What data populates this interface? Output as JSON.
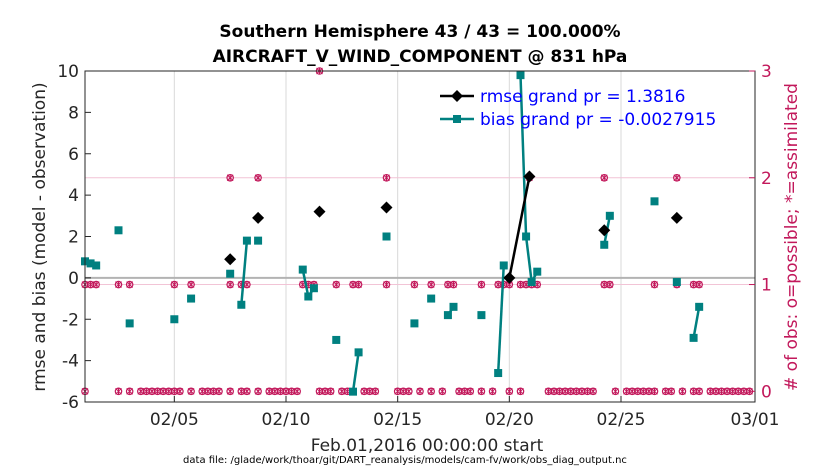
{
  "chart_data": {
    "type": "line",
    "title": "Southern Hemisphere 43 / 43 = 100.000%",
    "subtitle": "AIRCRAFT_V_WIND_COMPONENT @ 831 hPa",
    "xlabel": "Feb.01,2016 00:00:00 start",
    "ylabel": "rmse and bias (model - observation)",
    "ylabel_right": "# of obs: o=possible; *=assimilated",
    "footer": "data file: /glade/work/thoar/git/DART_reanalysis/models/cam-fv/work/obs_diag_output.nc",
    "xlim": [
      1,
      31
    ],
    "ylim": [
      -6,
      10
    ],
    "ylim_right": [
      -0.1,
      3
    ],
    "x_ticks": [
      5,
      10,
      15,
      20,
      25,
      31
    ],
    "x_tick_labels": [
      "02/05",
      "02/10",
      "02/15",
      "02/20",
      "02/25",
      "03/01"
    ],
    "y_ticks": [
      -6,
      -4,
      -2,
      0,
      2,
      4,
      6,
      8,
      10
    ],
    "y_tick_labels": [
      "-6",
      "-4",
      "-2",
      "0",
      "2",
      "4",
      "6",
      "8",
      "10"
    ],
    "y_right_ticks": [
      0,
      1,
      2,
      3
    ],
    "y_right_tick_labels": [
      "0",
      "1",
      "2",
      "3"
    ],
    "colors": {
      "rmse": "#000000",
      "bias": "#008080",
      "obs": "#c2185b",
      "zero_line": "#b3b3b3",
      "grid": "#d9d9d9"
    },
    "legend": [
      {
        "label": "rmse grand pr = 1.3816"
      },
      {
        "label": "bias grand pr = -0.0027915"
      }
    ],
    "series": [
      {
        "name": "rmse",
        "points": [
          [
            7.5,
            0.9
          ],
          [
            8.75,
            2.9
          ],
          [
            11.5,
            3.2
          ],
          [
            14.5,
            3.4
          ],
          [
            20.0,
            0.0
          ],
          [
            20.9,
            4.9
          ],
          [
            24.25,
            2.3
          ],
          [
            27.5,
            2.9
          ]
        ],
        "segments": [
          [
            [
              20.0,
              0.0
            ],
            [
              20.9,
              4.9
            ]
          ]
        ]
      },
      {
        "name": "bias",
        "points": [
          [
            1.0,
            0.8
          ],
          [
            1.25,
            0.7
          ],
          [
            1.5,
            0.6
          ],
          [
            2.5,
            2.3
          ],
          [
            3.0,
            -2.2
          ],
          [
            5.0,
            -2.0
          ],
          [
            5.75,
            -1.0
          ],
          [
            7.5,
            0.2
          ],
          [
            8.0,
            -1.3
          ],
          [
            8.25,
            1.8
          ],
          [
            8.75,
            1.8
          ],
          [
            10.75,
            0.4
          ],
          [
            11.0,
            -0.9
          ],
          [
            11.25,
            -0.5
          ],
          [
            12.25,
            -3.0
          ],
          [
            13.0,
            -5.5
          ],
          [
            13.25,
            -3.6
          ],
          [
            14.5,
            2.0
          ],
          [
            15.75,
            -2.2
          ],
          [
            16.5,
            -1.0
          ],
          [
            17.25,
            -1.8
          ],
          [
            17.5,
            -1.4
          ],
          [
            18.75,
            -1.8
          ],
          [
            19.5,
            -4.6
          ],
          [
            19.75,
            0.6
          ],
          [
            20.5,
            9.8
          ],
          [
            20.75,
            2.0
          ],
          [
            21.0,
            -0.2
          ],
          [
            21.25,
            0.3
          ],
          [
            24.25,
            1.6
          ],
          [
            24.5,
            3.0
          ],
          [
            26.5,
            3.7
          ],
          [
            27.5,
            -0.2
          ],
          [
            28.25,
            -2.9
          ],
          [
            28.5,
            -1.4
          ]
        ],
        "segments": [
          [
            [
              1.0,
              0.8
            ],
            [
              1.25,
              0.7
            ],
            [
              1.5,
              0.6
            ]
          ],
          [
            [
              8.0,
              -1.3
            ],
            [
              8.25,
              1.8
            ]
          ],
          [
            [
              10.75,
              0.4
            ],
            [
              11.0,
              -0.9
            ],
            [
              11.25,
              -0.5
            ]
          ],
          [
            [
              13.0,
              -5.5
            ],
            [
              13.25,
              -3.6
            ]
          ],
          [
            [
              17.25,
              -1.8
            ],
            [
              17.5,
              -1.4
            ]
          ],
          [
            [
              19.5,
              -4.6
            ],
            [
              19.75,
              0.6
            ]
          ],
          [
            [
              20.5,
              9.8
            ],
            [
              20.75,
              2.0
            ],
            [
              21.0,
              -0.2
            ],
            [
              21.25,
              0.3
            ]
          ],
          [
            [
              24.25,
              1.6
            ],
            [
              24.5,
              3.0
            ]
          ],
          [
            [
              28.25,
              -2.9
            ],
            [
              28.5,
              -1.4
            ]
          ]
        ]
      },
      {
        "name": "obs_count_possible_and_assimilated",
        "axis": "right",
        "points": [
          [
            1.0,
            0
          ],
          [
            1.0,
            1
          ],
          [
            1.25,
            1
          ],
          [
            1.5,
            1
          ],
          [
            2.5,
            1
          ],
          [
            2.5,
            0
          ],
          [
            3.0,
            1
          ],
          [
            3.0,
            0
          ],
          [
            3.5,
            0
          ],
          [
            3.75,
            0
          ],
          [
            4.0,
            0
          ],
          [
            4.25,
            0
          ],
          [
            4.5,
            0
          ],
          [
            4.75,
            0
          ],
          [
            5.0,
            1
          ],
          [
            5.0,
            0
          ],
          [
            5.25,
            0
          ],
          [
            5.75,
            1
          ],
          [
            5.75,
            0
          ],
          [
            6.25,
            0
          ],
          [
            6.5,
            0
          ],
          [
            6.75,
            0
          ],
          [
            7.0,
            0
          ],
          [
            7.5,
            2
          ],
          [
            7.5,
            1
          ],
          [
            7.5,
            0
          ],
          [
            8.0,
            1
          ],
          [
            8.25,
            1
          ],
          [
            8.0,
            0
          ],
          [
            8.25,
            0
          ],
          [
            8.75,
            2
          ],
          [
            8.75,
            0
          ],
          [
            9.25,
            0
          ],
          [
            9.5,
            0
          ],
          [
            9.75,
            0
          ],
          [
            10.0,
            0
          ],
          [
            10.25,
            0
          ],
          [
            10.5,
            0
          ],
          [
            10.75,
            1
          ],
          [
            11.0,
            1
          ],
          [
            11.25,
            1
          ],
          [
            11.5,
            3
          ],
          [
            11.5,
            0
          ],
          [
            11.75,
            0
          ],
          [
            12.0,
            0
          ],
          [
            12.25,
            1
          ],
          [
            12.5,
            0
          ],
          [
            12.75,
            0
          ],
          [
            13.0,
            1
          ],
          [
            13.25,
            1
          ],
          [
            13.5,
            0
          ],
          [
            13.75,
            0
          ],
          [
            14.0,
            0
          ],
          [
            14.5,
            2
          ],
          [
            14.5,
            1
          ],
          [
            15.0,
            0
          ],
          [
            15.25,
            0
          ],
          [
            15.5,
            0
          ],
          [
            15.75,
            1
          ],
          [
            16.0,
            0
          ],
          [
            16.5,
            1
          ],
          [
            16.5,
            0
          ],
          [
            17.0,
            0
          ],
          [
            17.25,
            1
          ],
          [
            17.5,
            1
          ],
          [
            17.75,
            0
          ],
          [
            18.0,
            0
          ],
          [
            18.25,
            0
          ],
          [
            18.75,
            1
          ],
          [
            18.75,
            0
          ],
          [
            19.25,
            0
          ],
          [
            19.5,
            1
          ],
          [
            19.75,
            1
          ],
          [
            20.0,
            1
          ],
          [
            20.0,
            0
          ],
          [
            20.5,
            1
          ],
          [
            20.5,
            0
          ],
          [
            20.75,
            1
          ],
          [
            20.9,
            2
          ],
          [
            21.0,
            1
          ],
          [
            21.25,
            1
          ],
          [
            21.75,
            0
          ],
          [
            22.0,
            0
          ],
          [
            22.25,
            0
          ],
          [
            22.5,
            0
          ],
          [
            22.75,
            0
          ],
          [
            23.0,
            0
          ],
          [
            23.25,
            0
          ],
          [
            23.5,
            0
          ],
          [
            23.75,
            0
          ],
          [
            24.25,
            2
          ],
          [
            24.25,
            1
          ],
          [
            24.5,
            1
          ],
          [
            24.75,
            0
          ],
          [
            25.25,
            0
          ],
          [
            25.5,
            0
          ],
          [
            25.75,
            0
          ],
          [
            26.0,
            0
          ],
          [
            26.25,
            0
          ],
          [
            26.5,
            1
          ],
          [
            26.5,
            0
          ],
          [
            27.0,
            0
          ],
          [
            27.25,
            0
          ],
          [
            27.5,
            2
          ],
          [
            27.5,
            1
          ],
          [
            27.75,
            0
          ],
          [
            28.25,
            1
          ],
          [
            28.5,
            1
          ],
          [
            28.25,
            0
          ],
          [
            28.5,
            0
          ],
          [
            29.0,
            0
          ],
          [
            29.25,
            0
          ],
          [
            29.5,
            0
          ],
          [
            29.75,
            0
          ],
          [
            30.0,
            0
          ],
          [
            30.25,
            0
          ],
          [
            30.5,
            0
          ],
          [
            30.75,
            0
          ]
        ]
      }
    ]
  }
}
